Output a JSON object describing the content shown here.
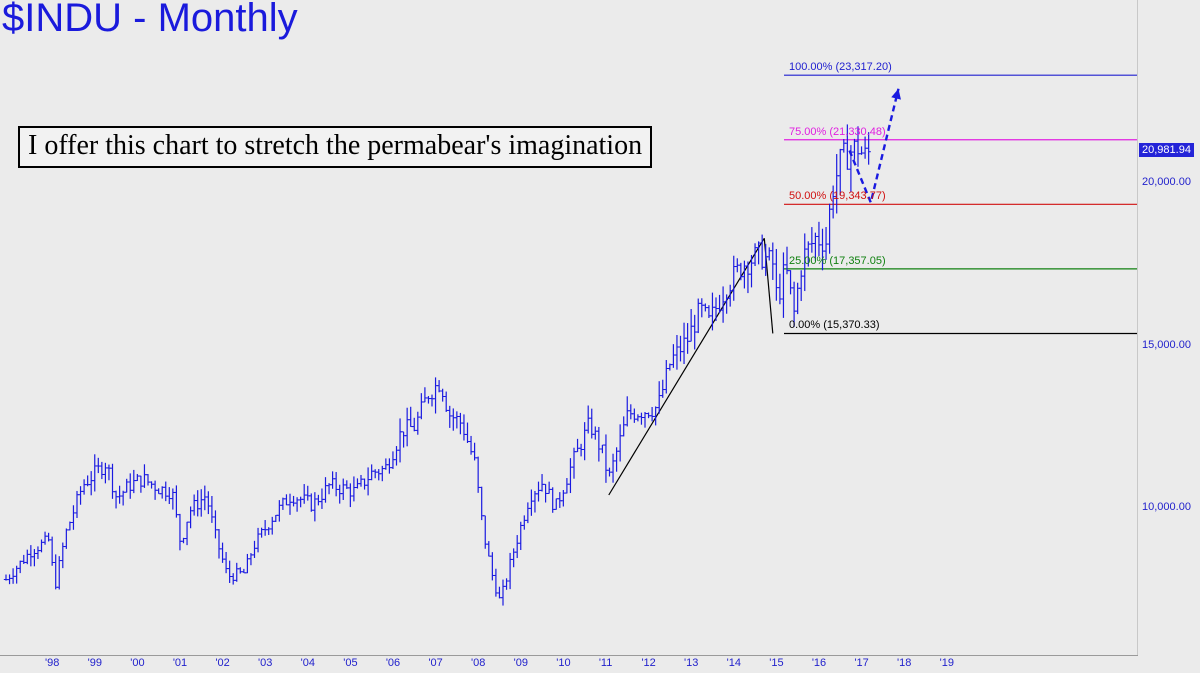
{
  "chart_data": {
    "type": "ohlc",
    "title": "$INDU - Monthly",
    "annotation": "I offer this chart to stretch the permabear's imagination",
    "x_tick_labels": [
      "'98",
      "'99",
      "'00",
      "'01",
      "'02",
      "'03",
      "'04",
      "'05",
      "'06",
      "'07",
      "'08",
      "'09",
      "'10",
      "'11",
      "'12",
      "'13",
      "'14",
      "'15",
      "'16",
      "'17",
      "'18",
      "'19"
    ],
    "y_tick_values": [
      10000,
      15000,
      20000
    ],
    "y_tick_labels": [
      "10,000.00",
      "15,000.00",
      "20,000.00"
    ],
    "ylim": [
      6000,
      25200
    ],
    "xlim": [
      1997.6,
      2024.3
    ],
    "last_price": {
      "value": 20981.94,
      "label": "20,981.94"
    },
    "fib_levels": [
      {
        "level": 100.0,
        "value": 23317.2,
        "label": "100.00% (23,317.20)",
        "color": "#2020d0"
      },
      {
        "level": 75.0,
        "value": 21330.48,
        "label": "75.00% (21,330.48)",
        "color": "#e020e0"
      },
      {
        "level": 50.0,
        "value": 19343.77,
        "label": "50.00% (19,343.77)",
        "color": "#d01010"
      },
      {
        "level": 25.0,
        "value": 17357.05,
        "label": "25.00% (17,357.05)",
        "color": "#108010"
      },
      {
        "level": 0.0,
        "value": 15370.33,
        "label": "0.00% (15,370.33)",
        "color": "#000000"
      }
    ],
    "trend_lines": [
      {
        "from": [
          2011.75,
          10400
        ],
        "to": [
          2015.4,
          18300
        ]
      },
      {
        "from": [
          2015.4,
          18300
        ],
        "to": [
          2015.6,
          15370.33
        ]
      }
    ],
    "projection": [
      [
        2017.4,
        21000
      ],
      [
        2017.9,
        19400
      ],
      [
        2018.55,
        22900
      ]
    ],
    "monthly_close_anchors": [
      [
        1997.6,
        7800
      ],
      [
        1998.2,
        8700
      ],
      [
        1998.6,
        9000
      ],
      [
        1998.75,
        7600
      ],
      [
        1999.0,
        9200
      ],
      [
        1999.4,
        10700
      ],
      [
        1999.95,
        11400
      ],
      [
        2000.2,
        10300
      ],
      [
        2000.5,
        10700
      ],
      [
        2000.8,
        10900
      ],
      [
        2001.2,
        10600
      ],
      [
        2001.5,
        10500
      ],
      [
        2001.7,
        8900
      ],
      [
        2001.9,
        9900
      ],
      [
        2002.3,
        10400
      ],
      [
        2002.5,
        9200
      ],
      [
        2002.8,
        7900
      ],
      [
        2003.2,
        8000
      ],
      [
        2003.4,
        8800
      ],
      [
        2003.9,
        9800
      ],
      [
        2004.3,
        10400
      ],
      [
        2004.8,
        10100
      ],
      [
        2005.2,
        10700
      ],
      [
        2005.8,
        10500
      ],
      [
        2006.2,
        11100
      ],
      [
        2006.5,
        11200
      ],
      [
        2006.9,
        12400
      ],
      [
        2007.2,
        12500
      ],
      [
        2007.5,
        13500
      ],
      [
        2007.8,
        13900
      ],
      [
        2008.0,
        12900
      ],
      [
        2008.3,
        12600
      ],
      [
        2008.6,
        11400
      ],
      [
        2008.8,
        9300
      ],
      [
        2009.0,
        8000
      ],
      [
        2009.2,
        7100
      ],
      [
        2009.5,
        8600
      ],
      [
        2009.9,
        10400
      ],
      [
        2010.2,
        10800
      ],
      [
        2010.5,
        10000
      ],
      [
        2010.9,
        11400
      ],
      [
        2011.3,
        12600
      ],
      [
        2011.6,
        11700
      ],
      [
        2011.75,
        10900
      ],
      [
        2012.2,
        12900
      ],
      [
        2012.6,
        13000
      ],
      [
        2012.9,
        13100
      ],
      [
        2013.2,
        14500
      ],
      [
        2013.6,
        15200
      ],
      [
        2013.9,
        16100
      ],
      [
        2014.1,
        15700
      ],
      [
        2014.5,
        16800
      ],
      [
        2014.9,
        17500
      ],
      [
        2015.3,
        17800
      ],
      [
        2015.6,
        17500
      ],
      [
        2015.7,
        16400
      ],
      [
        2015.9,
        17400
      ],
      [
        2016.1,
        16000
      ],
      [
        2016.3,
        17700
      ],
      [
        2016.6,
        18300
      ],
      [
        2016.85,
        18200
      ],
      [
        2017.0,
        19800
      ],
      [
        2017.2,
        20700
      ],
      [
        2017.45,
        21000
      ],
      [
        2017.6,
        21100
      ],
      [
        2017.75,
        20800
      ],
      [
        2017.9,
        20981.94
      ]
    ]
  }
}
